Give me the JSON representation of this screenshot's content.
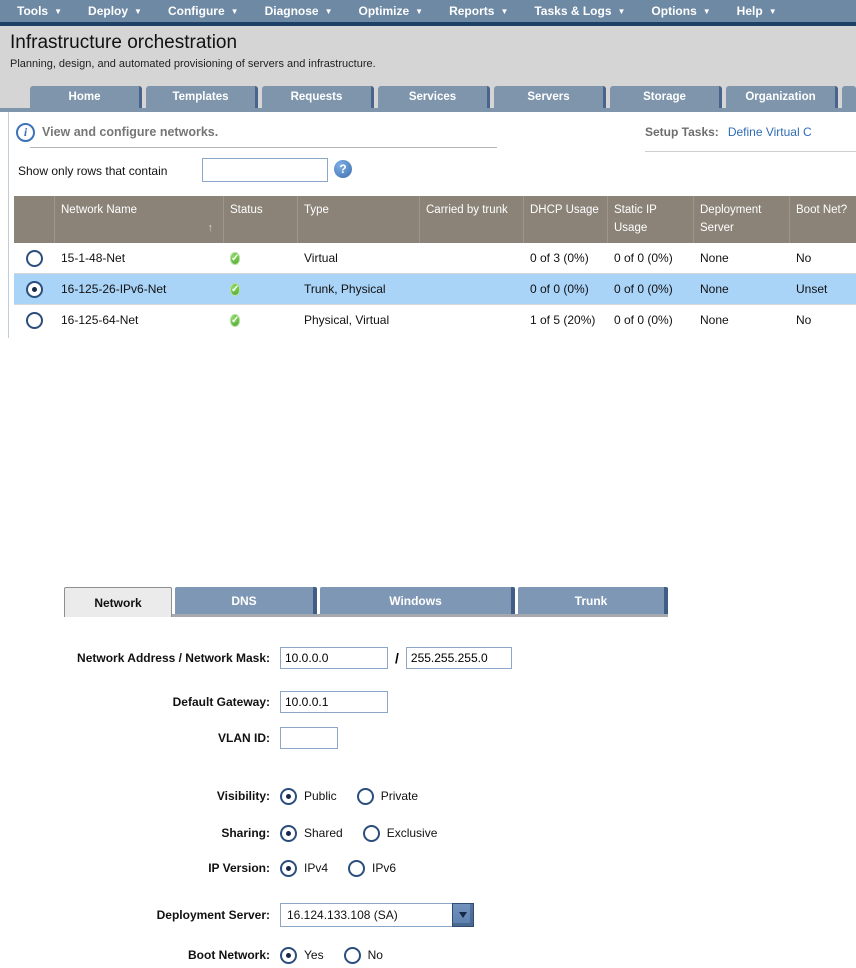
{
  "menu": {
    "items": [
      {
        "label": "Tools"
      },
      {
        "label": "Deploy"
      },
      {
        "label": "Configure"
      },
      {
        "label": "Diagnose"
      },
      {
        "label": "Optimize"
      },
      {
        "label": "Reports"
      },
      {
        "label": "Tasks & Logs"
      },
      {
        "label": "Options"
      },
      {
        "label": "Help"
      }
    ]
  },
  "header": {
    "title": "Infrastructure orchestration",
    "subtitle": "Planning, design, and automated provisioning of servers and infrastructure."
  },
  "tabs": [
    "Home",
    "Templates",
    "Requests",
    "Services",
    "Servers",
    "Storage",
    "Organization"
  ],
  "toolbar": {
    "info_text": "View and configure networks.",
    "setup_tasks_label": "Setup Tasks:",
    "setup_tasks_link": "Define Virtual C",
    "filter_label": "Show only rows that contain",
    "filter_value": ""
  },
  "table": {
    "columns": [
      {
        "key": "name",
        "label": "Network Name"
      },
      {
        "key": "status",
        "label": "Status"
      },
      {
        "key": "type",
        "label": "Type"
      },
      {
        "key": "trunk",
        "label": "Carried by trunk"
      },
      {
        "key": "dhcp",
        "label": "DHCP Usage"
      },
      {
        "key": "static",
        "label": "Static IP Usage"
      },
      {
        "key": "server",
        "label": "Deployment Server"
      },
      {
        "key": "boot",
        "label": "Boot Net?"
      }
    ],
    "sort_column": "name",
    "sort_direction": "asc",
    "rows": [
      {
        "selected": false,
        "name": "15-1-48-Net",
        "status": "ok",
        "type": "Virtual",
        "trunk": "",
        "dhcp": "0 of 3 (0%)",
        "static": "0 of 0 (0%)",
        "server": "None",
        "boot": "No"
      },
      {
        "selected": true,
        "name": "16-125-26-IPv6-Net",
        "status": "ok",
        "type": "Trunk, Physical",
        "trunk": "",
        "dhcp": "0 of 0 (0%)",
        "static": "0 of 0 (0%)",
        "server": "None",
        "boot": "Unset"
      },
      {
        "selected": false,
        "name": "16-125-64-Net",
        "status": "ok",
        "type": "Physical, Virtual",
        "trunk": "",
        "dhcp": "1 of 5 (20%)",
        "static": "0 of 0 (0%)",
        "server": "None",
        "boot": "No"
      }
    ]
  },
  "detail_tabs": [
    {
      "label": "Network",
      "active": true
    },
    {
      "label": "DNS",
      "active": false
    },
    {
      "label": "Windows",
      "active": false
    },
    {
      "label": "Trunk",
      "active": false
    }
  ],
  "form": {
    "network_mask_row": {
      "label": "Network Address / Network Mask:",
      "address": "10.0.0.0",
      "separator": "/",
      "mask": "255.255.255.0"
    },
    "default_gateway": {
      "label": "Default Gateway:",
      "value": "10.0.0.1"
    },
    "vlan_id": {
      "label": "VLAN ID:",
      "value": ""
    },
    "visibility": {
      "label": "Visibility:",
      "options": [
        {
          "label": "Public",
          "selected": true
        },
        {
          "label": "Private",
          "selected": false
        }
      ]
    },
    "sharing": {
      "label": "Sharing:",
      "options": [
        {
          "label": "Shared",
          "selected": true
        },
        {
          "label": "Exclusive",
          "selected": false
        }
      ]
    },
    "ip_version": {
      "label": "IP Version:",
      "options": [
        {
          "label": "IPv4",
          "selected": true
        },
        {
          "label": "IPv6",
          "selected": false
        }
      ]
    },
    "deployment_server": {
      "label": "Deployment Server:",
      "value": "16.124.133.108 (SA)"
    },
    "boot_network": {
      "label": "Boot Network:",
      "options": [
        {
          "label": "Yes",
          "selected": true
        },
        {
          "label": "No",
          "selected": false
        }
      ]
    }
  },
  "colors": {
    "menu_bar": "#6e89a4",
    "tab_blue": "#7e95ac",
    "table_header": "#8b8378",
    "selected_row": "#a9d3f7",
    "status_ok_green": "#4da32f",
    "link_blue": "#2f6db5"
  }
}
